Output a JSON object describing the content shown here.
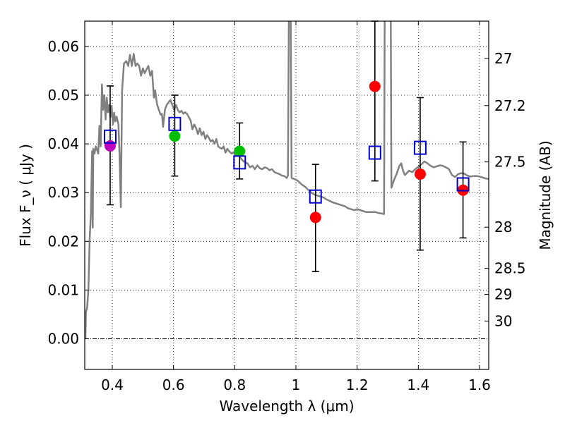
{
  "chart_data": {
    "type": "scatter",
    "xlabel": "Wavelength  λ (μm)",
    "ylabel": "Flux  F_ν  ( μJy )",
    "y2label": "Magnitude (AB)",
    "xlim": [
      0.31,
      1.63
    ],
    "ylim": [
      -0.0063,
      0.0652
    ],
    "x_ticks": [
      0.4,
      0.6,
      0.8,
      1.0,
      1.2,
      1.4,
      1.6
    ],
    "x_tick_labels": [
      "0.4",
      "0.6",
      "0.8",
      "1",
      "1.2",
      "1.4",
      "1.6"
    ],
    "y_ticks": [
      0.0,
      0.01,
      0.02,
      0.03,
      0.04,
      0.05,
      0.06
    ],
    "y_tick_labels": [
      "0.00",
      "0.01",
      "0.02",
      "0.03",
      "0.04",
      "0.05",
      "0.06"
    ],
    "mag_ticks": [
      {
        "mag": 27,
        "label": "27"
      },
      {
        "mag": 27.2,
        "label": "27.2"
      },
      {
        "mag": 27.5,
        "label": "27.5"
      },
      {
        "mag": 28,
        "label": "28"
      },
      {
        "mag": 28.5,
        "label": "28.5"
      },
      {
        "mag": 29,
        "label": "29"
      },
      {
        "mag": 30,
        "label": "30"
      }
    ],
    "observed": [
      {
        "x": 0.393,
        "y": 0.0396,
        "err_low": 0.0275,
        "err_high": 0.0519,
        "color": "#bf00bf"
      },
      {
        "x": 0.604,
        "y": 0.0416,
        "err_low": 0.0334,
        "err_high": 0.05,
        "color": "#00bf00"
      },
      {
        "x": 0.816,
        "y": 0.0385,
        "err_low": 0.0328,
        "err_high": 0.0443,
        "color": "#00bf00"
      },
      {
        "x": 1.064,
        "y": 0.0249,
        "err_low": 0.0138,
        "err_high": 0.0358,
        "color": "#ff0000"
      },
      {
        "x": 1.258,
        "y": 0.0518,
        "err_low": 0.0324,
        "err_high": 0.0652,
        "color": "#ff0000"
      },
      {
        "x": 1.406,
        "y": 0.0338,
        "err_low": 0.0182,
        "err_high": 0.0495,
        "color": "#ff0000"
      },
      {
        "x": 1.546,
        "y": 0.0305,
        "err_low": 0.0207,
        "err_high": 0.0404,
        "color": "#ff0000"
      }
    ],
    "model_photometry": [
      {
        "x": 0.393,
        "y": 0.0415
      },
      {
        "x": 0.604,
        "y": 0.0441
      },
      {
        "x": 0.816,
        "y": 0.0362
      },
      {
        "x": 1.064,
        "y": 0.0292
      },
      {
        "x": 1.258,
        "y": 0.0382
      },
      {
        "x": 1.406,
        "y": 0.0392
      },
      {
        "x": 1.546,
        "y": 0.0317
      }
    ],
    "model_spectrum": [
      [
        0.312,
        0.0
      ],
      [
        0.314,
        0.0055
      ],
      [
        0.318,
        0.0065
      ],
      [
        0.322,
        0.0102
      ],
      [
        0.326,
        0.0202
      ],
      [
        0.33,
        0.0258
      ],
      [
        0.334,
        0.0385
      ],
      [
        0.336,
        0.0228
      ],
      [
        0.338,
        0.039
      ],
      [
        0.342,
        0.038
      ],
      [
        0.346,
        0.0395
      ],
      [
        0.35,
        0.0388
      ],
      [
        0.354,
        0.038
      ],
      [
        0.358,
        0.0437
      ],
      [
        0.362,
        0.0395
      ],
      [
        0.366,
        0.0522
      ],
      [
        0.37,
        0.047
      ],
      [
        0.374,
        0.05
      ],
      [
        0.378,
        0.045
      ],
      [
        0.382,
        0.0495
      ],
      [
        0.386,
        0.0465
      ],
      [
        0.39,
        0.048
      ],
      [
        0.394,
        0.0455
      ],
      [
        0.398,
        0.0478
      ],
      [
        0.402,
        0.044
      ],
      [
        0.406,
        0.0464
      ],
      [
        0.41,
        0.0446
      ],
      [
        0.414,
        0.0456
      ],
      [
        0.42,
        0.044
      ],
      [
        0.424,
        0.0372
      ],
      [
        0.428,
        0.027
      ],
      [
        0.432,
        0.051
      ],
      [
        0.438,
        0.0565
      ],
      [
        0.446,
        0.057
      ],
      [
        0.452,
        0.056
      ],
      [
        0.458,
        0.0583
      ],
      [
        0.464,
        0.056
      ],
      [
        0.47,
        0.0585
      ],
      [
        0.476,
        0.056
      ],
      [
        0.482,
        0.0565
      ],
      [
        0.488,
        0.056
      ],
      [
        0.494,
        0.054
      ],
      [
        0.5,
        0.0555
      ],
      [
        0.506,
        0.0545
      ],
      [
        0.512,
        0.0553
      ],
      [
        0.518,
        0.056
      ],
      [
        0.524,
        0.054
      ],
      [
        0.53,
        0.055
      ],
      [
        0.536,
        0.0495
      ],
      [
        0.54,
        0.051
      ],
      [
        0.546,
        0.0482
      ],
      [
        0.552,
        0.047
      ],
      [
        0.558,
        0.046
      ],
      [
        0.562,
        0.0462
      ],
      [
        0.566,
        0.0435
      ],
      [
        0.572,
        0.047
      ],
      [
        0.578,
        0.048
      ],
      [
        0.584,
        0.0485
      ],
      [
        0.59,
        0.049
      ],
      [
        0.596,
        0.048
      ],
      [
        0.602,
        0.047
      ],
      [
        0.608,
        0.048
      ],
      [
        0.614,
        0.047
      ],
      [
        0.62,
        0.0465
      ],
      [
        0.626,
        0.0468
      ],
      [
        0.632,
        0.0462
      ],
      [
        0.638,
        0.0465
      ],
      [
        0.644,
        0.0462
      ],
      [
        0.65,
        0.0455
      ],
      [
        0.656,
        0.0448
      ],
      [
        0.662,
        0.043
      ],
      [
        0.668,
        0.044
      ],
      [
        0.674,
        0.0432
      ],
      [
        0.68,
        0.042
      ],
      [
        0.686,
        0.0432
      ],
      [
        0.692,
        0.0418
      ],
      [
        0.698,
        0.0425
      ],
      [
        0.704,
        0.041
      ],
      [
        0.71,
        0.0418
      ],
      [
        0.716,
        0.0412
      ],
      [
        0.722,
        0.0405
      ],
      [
        0.728,
        0.0408
      ],
      [
        0.734,
        0.04
      ],
      [
        0.74,
        0.041
      ],
      [
        0.746,
        0.0395
      ],
      [
        0.752,
        0.0392
      ],
      [
        0.758,
        0.039
      ],
      [
        0.764,
        0.0395
      ],
      [
        0.77,
        0.0382
      ],
      [
        0.776,
        0.039
      ],
      [
        0.782,
        0.0385
      ],
      [
        0.79,
        0.038
      ],
      [
        0.796,
        0.0383
      ],
      [
        0.802,
        0.0376
      ],
      [
        0.81,
        0.038
      ],
      [
        0.818,
        0.0372
      ],
      [
        0.826,
        0.0366
      ],
      [
        0.834,
        0.0362
      ],
      [
        0.842,
        0.036
      ],
      [
        0.85,
        0.0352
      ],
      [
        0.858,
        0.0355
      ],
      [
        0.866,
        0.0348
      ],
      [
        0.874,
        0.0356
      ],
      [
        0.882,
        0.035
      ],
      [
        0.89,
        0.0348
      ],
      [
        0.898,
        0.0352
      ],
      [
        0.906,
        0.035
      ],
      [
        0.914,
        0.0346
      ],
      [
        0.922,
        0.0348
      ],
      [
        0.93,
        0.0342
      ],
      [
        0.938,
        0.034
      ],
      [
        0.946,
        0.0338
      ],
      [
        0.954,
        0.0335
      ],
      [
        0.962,
        0.0334
      ],
      [
        0.97,
        0.033
      ],
      [
        0.974,
        0.0335
      ],
      [
        0.977,
        0.066
      ],
      [
        0.983,
        0.066
      ],
      [
        0.986,
        0.033
      ],
      [
        0.994,
        0.0328
      ],
      [
        1.002,
        0.0326
      ],
      [
        1.01,
        0.0322
      ],
      [
        1.02,
        0.0316
      ],
      [
        1.03,
        0.0312
      ],
      [
        1.04,
        0.0306
      ],
      [
        1.05,
        0.03
      ],
      [
        1.06,
        0.0296
      ],
      [
        1.07,
        0.0294
      ],
      [
        1.08,
        0.0292
      ],
      [
        1.09,
        0.029
      ],
      [
        1.1,
        0.0286
      ],
      [
        1.11,
        0.0283
      ],
      [
        1.12,
        0.028
      ],
      [
        1.13,
        0.0278
      ],
      [
        1.14,
        0.0276
      ],
      [
        1.15,
        0.0274
      ],
      [
        1.16,
        0.0272
      ],
      [
        1.17,
        0.0268
      ],
      [
        1.18,
        0.0266
      ],
      [
        1.19,
        0.0264
      ],
      [
        1.2,
        0.0266
      ],
      [
        1.21,
        0.0264
      ],
      [
        1.22,
        0.0262
      ],
      [
        1.23,
        0.026
      ],
      [
        1.24,
        0.026
      ],
      [
        1.25,
        0.026
      ],
      [
        1.26,
        0.026
      ],
      [
        1.27,
        0.0258
      ],
      [
        1.28,
        0.0257
      ],
      [
        1.288,
        0.0256
      ],
      [
        1.29,
        0.066
      ],
      [
        1.31,
        0.066
      ],
      [
        1.312,
        0.031
      ],
      [
        1.32,
        0.0325
      ],
      [
        1.33,
        0.034
      ],
      [
        1.338,
        0.0355
      ],
      [
        1.344,
        0.036
      ],
      [
        1.35,
        0.0345
      ],
      [
        1.356,
        0.0336
      ],
      [
        1.362,
        0.034
      ],
      [
        1.37,
        0.0345
      ],
      [
        1.38,
        0.0342
      ],
      [
        1.39,
        0.0348
      ],
      [
        1.4,
        0.0353
      ],
      [
        1.41,
        0.0358
      ],
      [
        1.42,
        0.0364
      ],
      [
        1.43,
        0.036
      ],
      [
        1.44,
        0.0355
      ],
      [
        1.45,
        0.0352
      ],
      [
        1.46,
        0.0354
      ],
      [
        1.47,
        0.0356
      ],
      [
        1.48,
        0.0355
      ],
      [
        1.49,
        0.0352
      ],
      [
        1.5,
        0.0348
      ],
      [
        1.51,
        0.0336
      ],
      [
        1.52,
        0.0332
      ],
      [
        1.53,
        0.0338
      ],
      [
        1.54,
        0.034
      ],
      [
        1.55,
        0.0339
      ],
      [
        1.56,
        0.0335
      ],
      [
        1.57,
        0.0333
      ],
      [
        1.58,
        0.0334
      ],
      [
        1.59,
        0.0334
      ],
      [
        1.6,
        0.0333
      ],
      [
        1.61,
        0.0331
      ],
      [
        1.62,
        0.0329
      ],
      [
        1.63,
        0.0328
      ]
    ],
    "spectrum_color": "#808080",
    "model_marker_color": "#0000cc",
    "grid": true
  }
}
